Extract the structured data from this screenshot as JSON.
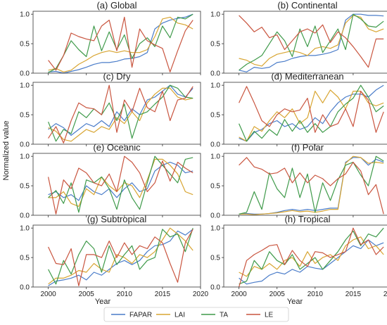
{
  "figure": {
    "ylabel": "Normalized value",
    "xlabel": "Year",
    "legend": {
      "placement": "bottom-center"
    }
  },
  "colors": {
    "FAPAR": "#4a7cc9",
    "LAI": "#d8a532",
    "TA": "#3f9a4a",
    "LE": "#c9553f"
  },
  "chart_data": [
    {
      "type": "line",
      "title": "(a) Global",
      "x": [
        2000,
        2001,
        2002,
        2003,
        2004,
        2005,
        2006,
        2007,
        2008,
        2009,
        2010,
        2011,
        2012,
        2013,
        2014,
        2015,
        2016,
        2017,
        2018,
        2019
      ],
      "xlim": [
        1998,
        2020
      ],
      "ylim": [
        0,
        1.05
      ],
      "series": [
        {
          "name": "FAPAR",
          "values": [
            0.02,
            0.03,
            0.0,
            0.03,
            0.06,
            0.1,
            0.15,
            0.18,
            0.18,
            0.2,
            0.24,
            0.25,
            0.28,
            0.35,
            0.75,
            0.85,
            0.9,
            0.93,
            0.95,
            1.0
          ]
        },
        {
          "name": "LAI",
          "values": [
            0.05,
            0.08,
            0.02,
            0.05,
            0.15,
            0.22,
            0.3,
            0.35,
            0.38,
            0.35,
            0.38,
            0.35,
            0.35,
            0.4,
            0.62,
            0.92,
            0.95,
            0.85,
            0.82,
            0.75
          ]
        },
        {
          "name": "TA",
          "values": [
            0.01,
            0.08,
            0.3,
            0.55,
            0.4,
            0.28,
            0.8,
            0.38,
            0.7,
            0.4,
            0.65,
            0.25,
            0.5,
            0.6,
            0.45,
            0.8,
            0.6,
            0.95,
            0.92,
            1.0
          ]
        },
        {
          "name": "LE",
          "values": [
            0.22,
            0.05,
            0.3,
            0.68,
            0.62,
            0.58,
            0.55,
            0.8,
            0.9,
            0.38,
            0.95,
            0.1,
            0.75,
            0.55,
            0.48,
            0.42,
            0.02,
            0.38,
            0.72,
            0.9
          ]
        }
      ]
    },
    {
      "type": "line",
      "title": "(b) Continental",
      "x": [
        2000,
        2001,
        2002,
        2003,
        2004,
        2005,
        2006,
        2007,
        2008,
        2009,
        2010,
        2011,
        2012,
        2013,
        2014,
        2015,
        2016,
        2017,
        2018,
        2019
      ],
      "xlim": [
        1998,
        2020
      ],
      "ylim": [
        0,
        1.05
      ],
      "series": [
        {
          "name": "FAPAR",
          "values": [
            0.05,
            0.02,
            0.1,
            0.08,
            0.1,
            0.18,
            0.2,
            0.25,
            0.28,
            0.3,
            0.3,
            0.32,
            0.35,
            0.4,
            0.9,
            1.0,
            1.0,
            0.98,
            0.98,
            0.97
          ]
        },
        {
          "name": "LAI",
          "values": [
            0.25,
            0.22,
            0.15,
            0.12,
            0.25,
            0.32,
            0.35,
            0.38,
            0.35,
            0.3,
            0.42,
            0.45,
            0.42,
            0.48,
            0.85,
            0.98,
            0.95,
            0.75,
            0.7,
            0.75
          ]
        },
        {
          "name": "TA",
          "values": [
            0.05,
            0.15,
            0.22,
            0.3,
            0.5,
            0.7,
            0.55,
            0.28,
            0.75,
            0.45,
            0.8,
            0.35,
            0.55,
            0.75,
            0.4,
            1.0,
            0.92,
            0.8,
            0.78,
            0.88
          ]
        },
        {
          "name": "LE",
          "values": [
            0.98,
            0.85,
            0.7,
            0.78,
            0.6,
            0.65,
            0.4,
            0.55,
            0.7,
            0.75,
            0.68,
            0.82,
            0.52,
            0.7,
            0.6,
            0.45,
            0.28,
            0.1,
            0.58,
            0.58
          ]
        }
      ]
    },
    {
      "type": "line",
      "title": "(c) Dry",
      "x": [
        2000,
        2001,
        2002,
        2003,
        2004,
        2005,
        2006,
        2007,
        2008,
        2009,
        2010,
        2011,
        2012,
        2013,
        2014,
        2015,
        2016,
        2017,
        2018,
        2019
      ],
      "xlim": [
        1998,
        2020
      ],
      "ylim": [
        0,
        1.05
      ],
      "series": [
        {
          "name": "FAPAR",
          "values": [
            0.25,
            0.35,
            0.28,
            0.15,
            0.25,
            0.35,
            0.3,
            0.4,
            0.3,
            0.55,
            0.4,
            0.6,
            0.5,
            0.75,
            0.8,
            0.9,
            1.0,
            0.85,
            0.8,
            0.95
          ]
        },
        {
          "name": "LAI",
          "values": [
            0.28,
            0.22,
            0.08,
            0.05,
            0.15,
            0.25,
            0.2,
            0.3,
            0.25,
            0.45,
            0.35,
            0.55,
            0.4,
            0.7,
            0.85,
            0.95,
            0.95,
            0.8,
            0.75,
            0.78
          ]
        },
        {
          "name": "TA",
          "values": [
            0.38,
            0.05,
            0.25,
            0.18,
            0.55,
            0.45,
            0.6,
            0.5,
            0.7,
            0.4,
            0.68,
            0.1,
            0.5,
            0.55,
            0.68,
            0.8,
            1.0,
            0.95,
            0.8,
            0.78
          ]
        },
        {
          "name": "LE",
          "values": [
            0.1,
            0.3,
            0.02,
            0.4,
            0.7,
            0.62,
            0.6,
            0.5,
            1.0,
            0.2,
            0.75,
            0.55,
            0.95,
            0.62,
            0.55,
            0.9,
            0.4,
            0.75,
            0.78,
            0.98
          ]
        }
      ]
    },
    {
      "type": "line",
      "title": "(d) Mediterranean",
      "x": [
        2000,
        2001,
        2002,
        2003,
        2004,
        2005,
        2006,
        2007,
        2008,
        2009,
        2010,
        2011,
        2012,
        2013,
        2014,
        2015,
        2016,
        2017,
        2018,
        2019
      ],
      "xlim": [
        1998,
        2020
      ],
      "ylim": [
        0,
        1.05
      ],
      "series": [
        {
          "name": "FAPAR",
          "values": [
            0.1,
            0.05,
            0.2,
            0.25,
            0.35,
            0.4,
            0.3,
            0.35,
            0.25,
            0.3,
            0.45,
            0.35,
            0.55,
            0.7,
            0.8,
            0.85,
            0.85,
            0.8,
            0.92,
            1.0
          ]
        },
        {
          "name": "LAI",
          "values": [
            0.12,
            0.05,
            0.3,
            0.22,
            0.4,
            0.55,
            0.45,
            0.6,
            0.35,
            0.45,
            0.9,
            0.7,
            0.92,
            0.8,
            0.6,
            0.9,
            0.9,
            0.7,
            0.65,
            0.7
          ]
        },
        {
          "name": "TA",
          "values": [
            0.35,
            0.05,
            0.22,
            0.1,
            0.25,
            0.15,
            0.42,
            0.22,
            0.4,
            0.2,
            0.35,
            0.2,
            0.3,
            0.55,
            0.68,
            0.78,
            1.0,
            0.8,
            0.55,
            0.65
          ]
        },
        {
          "name": "LE",
          "values": [
            0.7,
            0.98,
            0.7,
            0.4,
            0.3,
            0.5,
            0.6,
            0.55,
            0.58,
            0.78,
            0.2,
            0.5,
            0.3,
            0.35,
            0.6,
            0.3,
            0.9,
            0.75,
            0.2,
            0.55
          ]
        }
      ]
    },
    {
      "type": "line",
      "title": "(e) Oceanic",
      "x": [
        2000,
        2001,
        2002,
        2003,
        2004,
        2005,
        2006,
        2007,
        2008,
        2009,
        2010,
        2011,
        2012,
        2013,
        2014,
        2015,
        2016,
        2017,
        2018,
        2019
      ],
      "xlim": [
        1998,
        2020
      ],
      "ylim": [
        0,
        1.05
      ],
      "series": [
        {
          "name": "FAPAR",
          "values": [
            0.35,
            0.4,
            0.3,
            0.35,
            0.25,
            0.5,
            0.4,
            0.35,
            0.45,
            0.3,
            0.45,
            0.55,
            0.4,
            0.45,
            0.75,
            0.85,
            0.9,
            0.85,
            0.72,
            0.75
          ]
        },
        {
          "name": "LAI",
          "values": [
            0.3,
            0.3,
            0.4,
            0.2,
            0.15,
            0.45,
            0.35,
            0.65,
            0.5,
            0.4,
            0.55,
            0.5,
            0.3,
            0.6,
            0.95,
            0.95,
            0.85,
            0.7,
            0.4,
            0.35
          ]
        },
        {
          "name": "TA",
          "values": [
            0.3,
            0.42,
            0.2,
            0.55,
            0.05,
            0.6,
            0.55,
            0.65,
            0.45,
            0.1,
            0.6,
            0.3,
            0.1,
            0.55,
            1.0,
            0.85,
            0.7,
            0.55,
            0.95,
            0.98
          ]
        },
        {
          "name": "LE",
          "values": [
            0.65,
            0.02,
            0.6,
            0.45,
            0.8,
            0.72,
            0.55,
            0.5,
            0.7,
            0.4,
            1.0,
            0.9,
            0.72,
            0.4,
            0.55,
            0.92,
            0.58,
            0.9,
            0.8,
            0.72
          ]
        }
      ]
    },
    {
      "type": "line",
      "title": "(f) Polar",
      "x": [
        2000,
        2001,
        2002,
        2003,
        2004,
        2005,
        2006,
        2007,
        2008,
        2009,
        2010,
        2011,
        2012,
        2013,
        2014,
        2015,
        2016,
        2017,
        2018,
        2019
      ],
      "xlim": [
        1998,
        2020
      ],
      "ylim": [
        0,
        1.05
      ],
      "series": [
        {
          "name": "FAPAR",
          "values": [
            0.02,
            0.03,
            0.02,
            0.02,
            0.03,
            0.05,
            0.08,
            0.1,
            0.08,
            0.1,
            0.08,
            0.1,
            0.12,
            0.12,
            0.9,
            0.98,
            0.98,
            0.85,
            0.95,
            0.9
          ]
        },
        {
          "name": "LAI",
          "values": [
            0.02,
            0.02,
            0.01,
            0.02,
            0.03,
            0.04,
            0.06,
            0.08,
            0.06,
            0.07,
            0.05,
            0.07,
            0.1,
            0.1,
            0.88,
            1.0,
            0.98,
            0.88,
            0.9,
            0.88
          ]
        },
        {
          "name": "TA",
          "values": [
            0.02,
            0.05,
            0.4,
            0.1,
            0.72,
            0.45,
            0.3,
            0.8,
            0.3,
            0.7,
            0.05,
            0.55,
            0.25,
            0.6,
            0.85,
            0.9,
            0.68,
            0.5,
            1.0,
            0.92
          ]
        },
        {
          "name": "LE",
          "values": [
            0.85,
            0.98,
            0.82,
            0.78,
            0.7,
            0.72,
            0.8,
            0.55,
            0.72,
            0.55,
            0.68,
            0.62,
            0.5,
            0.62,
            0.7,
            0.9,
            0.75,
            0.35,
            0.52,
            0.02
          ]
        }
      ]
    },
    {
      "type": "line",
      "title": "(g) Subtropical",
      "x": [
        2000,
        2001,
        2002,
        2003,
        2004,
        2005,
        2006,
        2007,
        2008,
        2009,
        2010,
        2011,
        2012,
        2013,
        2014,
        2015,
        2016,
        2017,
        2018,
        2019
      ],
      "xlim": [
        1998,
        2020
      ],
      "ylim": [
        0,
        1.05
      ],
      "series": [
        {
          "name": "FAPAR",
          "values": [
            0.02,
            0.1,
            0.12,
            0.15,
            0.2,
            0.12,
            0.25,
            0.2,
            0.3,
            0.4,
            0.45,
            0.38,
            0.45,
            0.6,
            0.7,
            0.72,
            0.78,
            0.95,
            0.88,
            0.98
          ]
        },
        {
          "name": "LAI",
          "values": [
            0.05,
            0.15,
            0.15,
            0.2,
            0.28,
            0.25,
            0.4,
            0.3,
            0.25,
            0.55,
            0.5,
            0.4,
            0.55,
            0.5,
            0.6,
            0.8,
            1.0,
            0.9,
            0.78,
            0.62
          ]
        },
        {
          "name": "TA",
          "values": [
            0.3,
            0.05,
            0.45,
            0.22,
            0.55,
            0.78,
            0.65,
            0.25,
            0.7,
            0.38,
            0.55,
            0.7,
            0.3,
            0.45,
            0.5,
            0.98,
            0.85,
            0.9,
            0.6,
            1.0
          ]
        },
        {
          "name": "LE",
          "values": [
            0.68,
            0.4,
            0.38,
            0.65,
            0.02,
            0.55,
            0.55,
            0.5,
            0.78,
            0.5,
            0.75,
            0.55,
            0.7,
            0.65,
            0.85,
            0.75,
            0.4,
            0.08,
            0.75,
            0.98
          ]
        }
      ]
    },
    {
      "type": "line",
      "title": "(h) Tropical",
      "x": [
        2000,
        2001,
        2002,
        2003,
        2004,
        2005,
        2006,
        2007,
        2008,
        2009,
        2010,
        2011,
        2012,
        2013,
        2014,
        2015,
        2016,
        2017,
        2018,
        2019
      ],
      "xlim": [
        1998,
        2020
      ],
      "ylim": [
        0,
        1.05
      ],
      "series": [
        {
          "name": "FAPAR",
          "values": [
            0.15,
            0.05,
            0.08,
            0.1,
            0.2,
            0.25,
            0.22,
            0.3,
            0.25,
            0.35,
            0.32,
            0.3,
            0.4,
            0.5,
            0.6,
            0.7,
            0.65,
            0.8,
            0.7,
            0.75
          ]
        },
        {
          "name": "LAI",
          "values": [
            0.25,
            0.18,
            0.35,
            0.3,
            0.4,
            0.3,
            0.45,
            0.5,
            0.35,
            0.6,
            0.4,
            0.5,
            0.55,
            0.45,
            0.7,
            0.8,
            0.85,
            0.65,
            0.7,
            0.55
          ]
        },
        {
          "name": "TA",
          "values": [
            0.05,
            0.1,
            0.45,
            0.3,
            0.6,
            0.45,
            0.38,
            0.55,
            0.3,
            0.4,
            0.5,
            0.3,
            0.45,
            0.6,
            0.8,
            0.95,
            0.7,
            0.9,
            0.85,
            1.0
          ]
        },
        {
          "name": "LE",
          "values": [
            0.0,
            0.45,
            0.55,
            0.62,
            0.7,
            0.72,
            0.38,
            0.62,
            0.45,
            0.35,
            0.6,
            0.58,
            0.5,
            0.55,
            0.6,
            1.0,
            0.72,
            0.8,
            0.55,
            0.68
          ]
        }
      ]
    }
  ]
}
